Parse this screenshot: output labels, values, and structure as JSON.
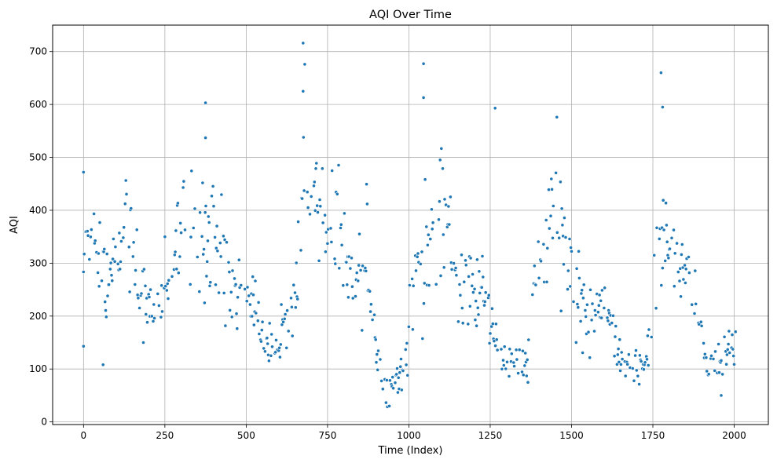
{
  "chart_data": {
    "type": "scatter",
    "title": "AQI Over Time",
    "xlabel": "Time (Index)",
    "ylabel": "AQI",
    "xlim": [
      -95,
      2105
    ],
    "ylim": [
      -5,
      750
    ],
    "xticks": [
      0,
      250,
      500,
      750,
      1000,
      1250,
      1500,
      1750,
      2000
    ],
    "yticks": [
      0,
      100,
      200,
      300,
      400,
      500,
      600,
      700
    ],
    "grid": true,
    "marker_color": "#1f77b4",
    "marker_edge_color": "#ffffff",
    "legend": null,
    "n_points": 2010,
    "trend_anchors": [
      {
        "x": 0,
        "y": 340
      },
      {
        "x": 40,
        "y": 330
      },
      {
        "x": 80,
        "y": 260
      },
      {
        "x": 130,
        "y": 370
      },
      {
        "x": 180,
        "y": 240
      },
      {
        "x": 220,
        "y": 190
      },
      {
        "x": 260,
        "y": 270
      },
      {
        "x": 310,
        "y": 400
      },
      {
        "x": 360,
        "y": 380
      },
      {
        "x": 420,
        "y": 320
      },
      {
        "x": 460,
        "y": 240
      },
      {
        "x": 500,
        "y": 270
      },
      {
        "x": 560,
        "y": 150
      },
      {
        "x": 600,
        "y": 130
      },
      {
        "x": 640,
        "y": 230
      },
      {
        "x": 670,
        "y": 460
      },
      {
        "x": 700,
        "y": 430
      },
      {
        "x": 760,
        "y": 360
      },
      {
        "x": 830,
        "y": 290
      },
      {
        "x": 870,
        "y": 340
      },
      {
        "x": 900,
        "y": 120
      },
      {
        "x": 940,
        "y": 60
      },
      {
        "x": 990,
        "y": 110
      },
      {
        "x": 1020,
        "y": 320
      },
      {
        "x": 1070,
        "y": 360
      },
      {
        "x": 1100,
        "y": 380
      },
      {
        "x": 1150,
        "y": 280
      },
      {
        "x": 1200,
        "y": 230
      },
      {
        "x": 1240,
        "y": 250
      },
      {
        "x": 1280,
        "y": 120
      },
      {
        "x": 1320,
        "y": 110
      },
      {
        "x": 1360,
        "y": 105
      },
      {
        "x": 1400,
        "y": 320
      },
      {
        "x": 1460,
        "y": 390
      },
      {
        "x": 1500,
        "y": 260
      },
      {
        "x": 1550,
        "y": 200
      },
      {
        "x": 1600,
        "y": 240
      },
      {
        "x": 1650,
        "y": 120
      },
      {
        "x": 1700,
        "y": 100
      },
      {
        "x": 1730,
        "y": 120
      },
      {
        "x": 1760,
        "y": 320
      },
      {
        "x": 1800,
        "y": 340
      },
      {
        "x": 1850,
        "y": 290
      },
      {
        "x": 1880,
        "y": 210
      },
      {
        "x": 1920,
        "y": 100
      },
      {
        "x": 1960,
        "y": 120
      },
      {
        "x": 2010,
        "y": 130
      }
    ],
    "notable_points": [
      {
        "x": 0,
        "y": 472
      },
      {
        "x": 0,
        "y": 143
      },
      {
        "x": 60,
        "y": 108
      },
      {
        "x": 375,
        "y": 603
      },
      {
        "x": 375,
        "y": 537
      },
      {
        "x": 675,
        "y": 716
      },
      {
        "x": 680,
        "y": 676
      },
      {
        "x": 675,
        "y": 625
      },
      {
        "x": 1045,
        "y": 677
      },
      {
        "x": 1045,
        "y": 613
      },
      {
        "x": 1265,
        "y": 593
      },
      {
        "x": 1455,
        "y": 576
      },
      {
        "x": 1775,
        "y": 660
      },
      {
        "x": 1780,
        "y": 595
      },
      {
        "x": 940,
        "y": 30
      },
      {
        "x": 1960,
        "y": 50
      }
    ]
  }
}
